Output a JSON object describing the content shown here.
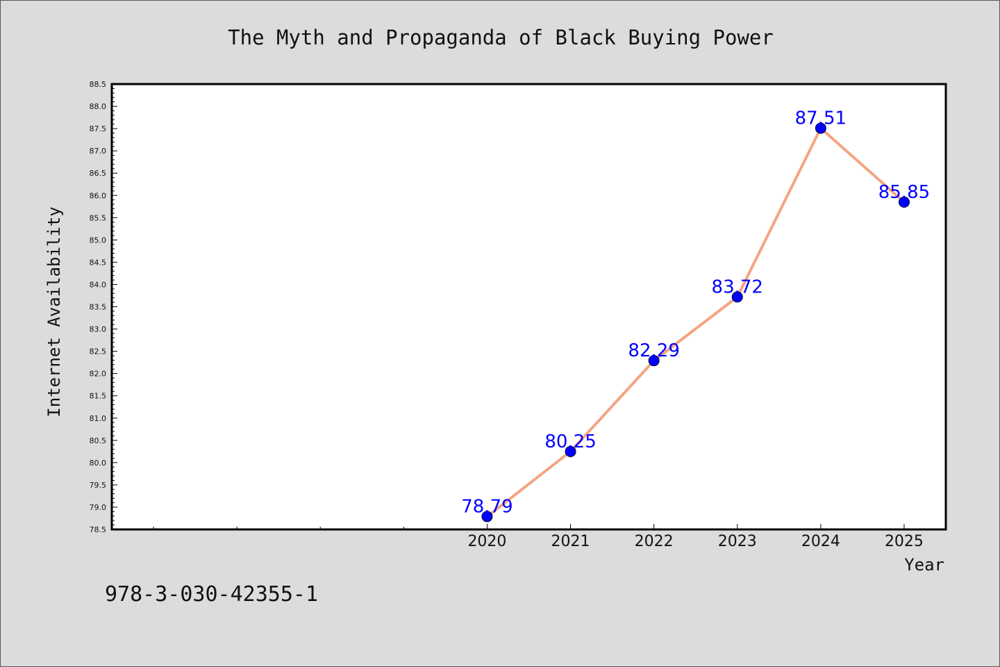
{
  "chart_data": {
    "type": "line",
    "title": "The Myth and Propaganda of Black Buying Power",
    "xlabel": "Year",
    "ylabel": "Internet Availability",
    "x": [
      2020,
      2021,
      2022,
      2023,
      2024,
      2025
    ],
    "x_tick_labels": [
      "2020",
      "2021",
      "2022",
      "2023",
      "2024",
      "2025"
    ],
    "series": [
      {
        "values": [
          78.79,
          80.25,
          82.29,
          83.72,
          87.51,
          85.85
        ],
        "data_labels": [
          "78.79",
          "80.25",
          "82.29",
          "83.72",
          "87.51",
          "85.85"
        ],
        "line_color": "#f4a582",
        "marker_color": "#0000ff",
        "label_color": "#0000ff"
      }
    ],
    "xlim": [
      2015.5,
      2025.5
    ],
    "ylim": [
      78.5,
      88.5
    ],
    "y_ticks": [
      "78.5",
      "79.0",
      "79.5",
      "80.0",
      "80.5",
      "81.0",
      "81.5",
      "82.0",
      "82.5",
      "83.0",
      "83.5",
      "84.0",
      "84.5",
      "85.0",
      "85.5",
      "86.0",
      "86.5",
      "87.0",
      "87.5",
      "88.0",
      "88.5"
    ],
    "grid": false,
    "legend": "none"
  },
  "footnote": "978-3-030-42355-1",
  "colors": {
    "background": "#dcdcdc",
    "plot_area": "#ffffff",
    "axes": "#000000"
  }
}
